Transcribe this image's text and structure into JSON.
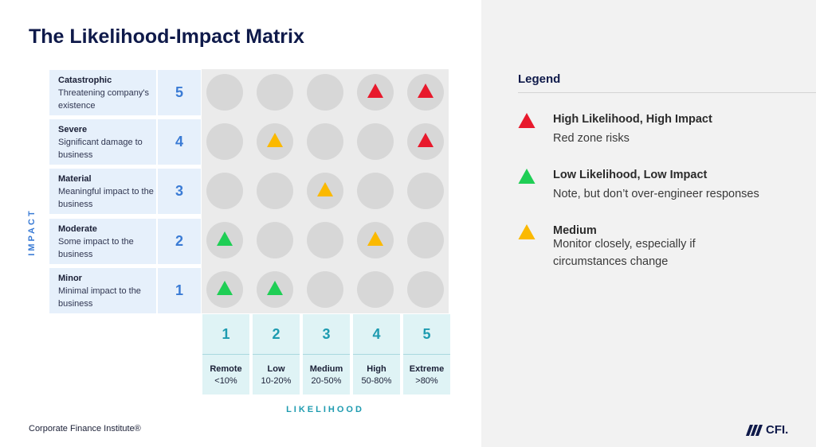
{
  "title": "The Likelihood-Impact Matrix",
  "y_axis_label": "IMPACT",
  "x_axis_label": "LIKELIHOOD",
  "impact_levels": [
    {
      "value": "5",
      "title": "Catastrophic",
      "desc": "Threatening company's existence"
    },
    {
      "value": "4",
      "title": "Severe",
      "desc": "Significant damage to business"
    },
    {
      "value": "3",
      "title": "Material",
      "desc": "Meaningful impact to the business"
    },
    {
      "value": "2",
      "title": "Moderate",
      "desc": "Some impact to the business"
    },
    {
      "value": "1",
      "title": "Minor",
      "desc": "Minimal impact to the business"
    }
  ],
  "likelihood_levels": [
    {
      "value": "1",
      "name": "Remote",
      "range": "<10%"
    },
    {
      "value": "2",
      "name": "Low",
      "range": "10-20%"
    },
    {
      "value": "3",
      "name": "Medium",
      "range": "20-50%"
    },
    {
      "value": "4",
      "name": "High",
      "range": "50-80%"
    },
    {
      "value": "5",
      "name": "Extreme",
      "range": ">80%"
    }
  ],
  "matrix": [
    [
      null,
      null,
      null,
      "red",
      "red"
    ],
    [
      null,
      "yellow",
      null,
      null,
      "red"
    ],
    [
      null,
      null,
      "yellow",
      null,
      null
    ],
    [
      "green",
      null,
      null,
      "yellow",
      null
    ],
    [
      "green",
      "green",
      null,
      null,
      null
    ]
  ],
  "colors": {
    "red": "#e8192c",
    "green": "#1fce55",
    "yellow": "#fbb900"
  },
  "legend": {
    "title": "Legend",
    "items": [
      {
        "color": "red",
        "heading": "High Likelihood, High Impact",
        "desc": "Red zone risks"
      },
      {
        "color": "green",
        "heading": "Low Likelihood, Low Impact",
        "desc": "Note, but don’t over-engineer responses"
      },
      {
        "color": "yellow",
        "heading": "Medium",
        "desc": "Monitor closely, especially if circumstances change"
      }
    ]
  },
  "footer": "Corporate Finance Institute®",
  "logo_text": "CFI."
}
